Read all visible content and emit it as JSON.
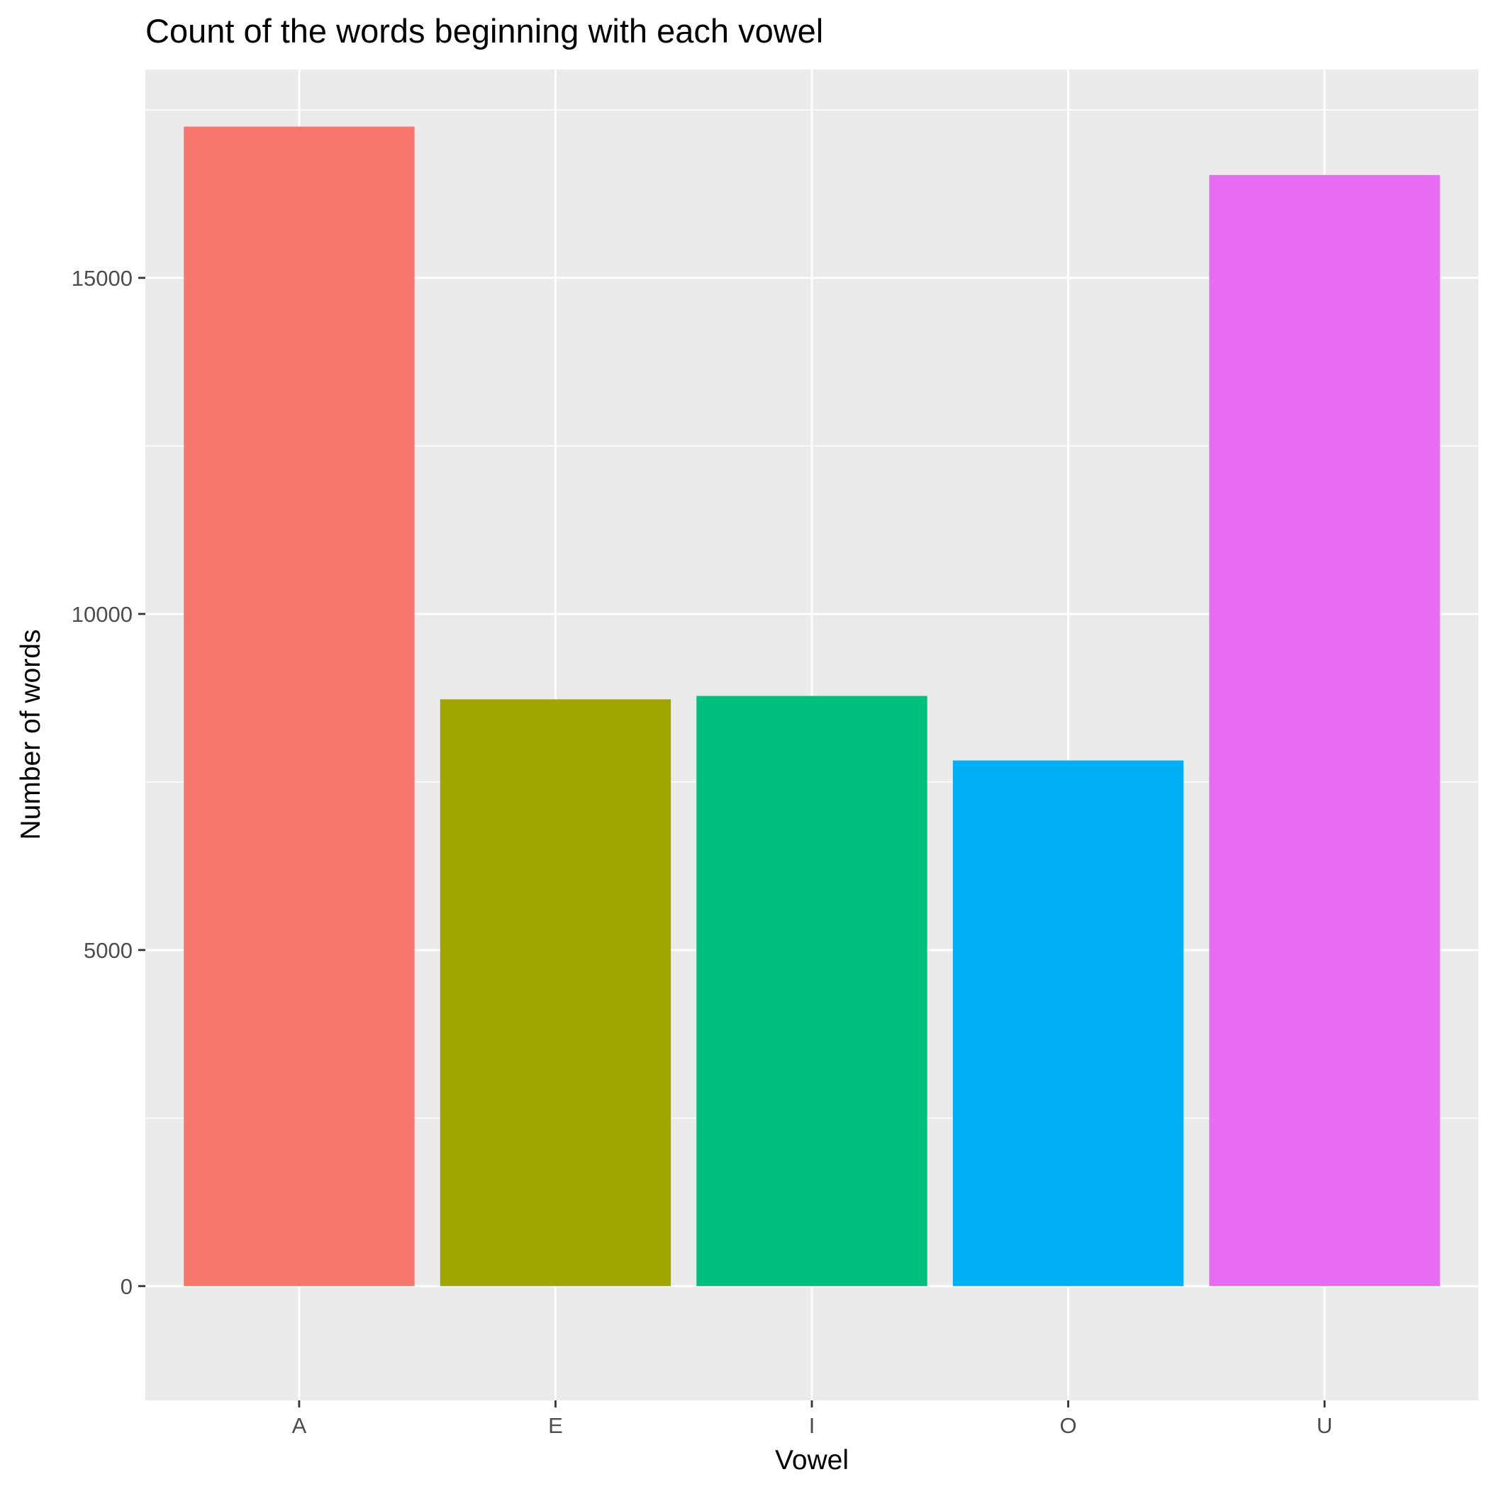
{
  "chart_data": {
    "type": "bar",
    "title": "Count of the words beginning with each vowel",
    "xlabel": "Vowel",
    "ylabel": "Number of words",
    "categories": [
      "A",
      "E",
      "I",
      "O",
      "U"
    ],
    "values": [
      17250,
      8730,
      8780,
      7820,
      16530
    ],
    "colors": [
      "#F8766D",
      "#A3A500",
      "#00BF7D",
      "#00B0F6",
      "#E76BF3"
    ],
    "ylim": [
      -1700,
      18100
    ],
    "yticks": [
      0,
      5000,
      10000,
      15000
    ],
    "ytick_labels": [
      "0",
      "5000",
      "10000",
      "15000"
    ],
    "grid": true,
    "legend": "none"
  }
}
